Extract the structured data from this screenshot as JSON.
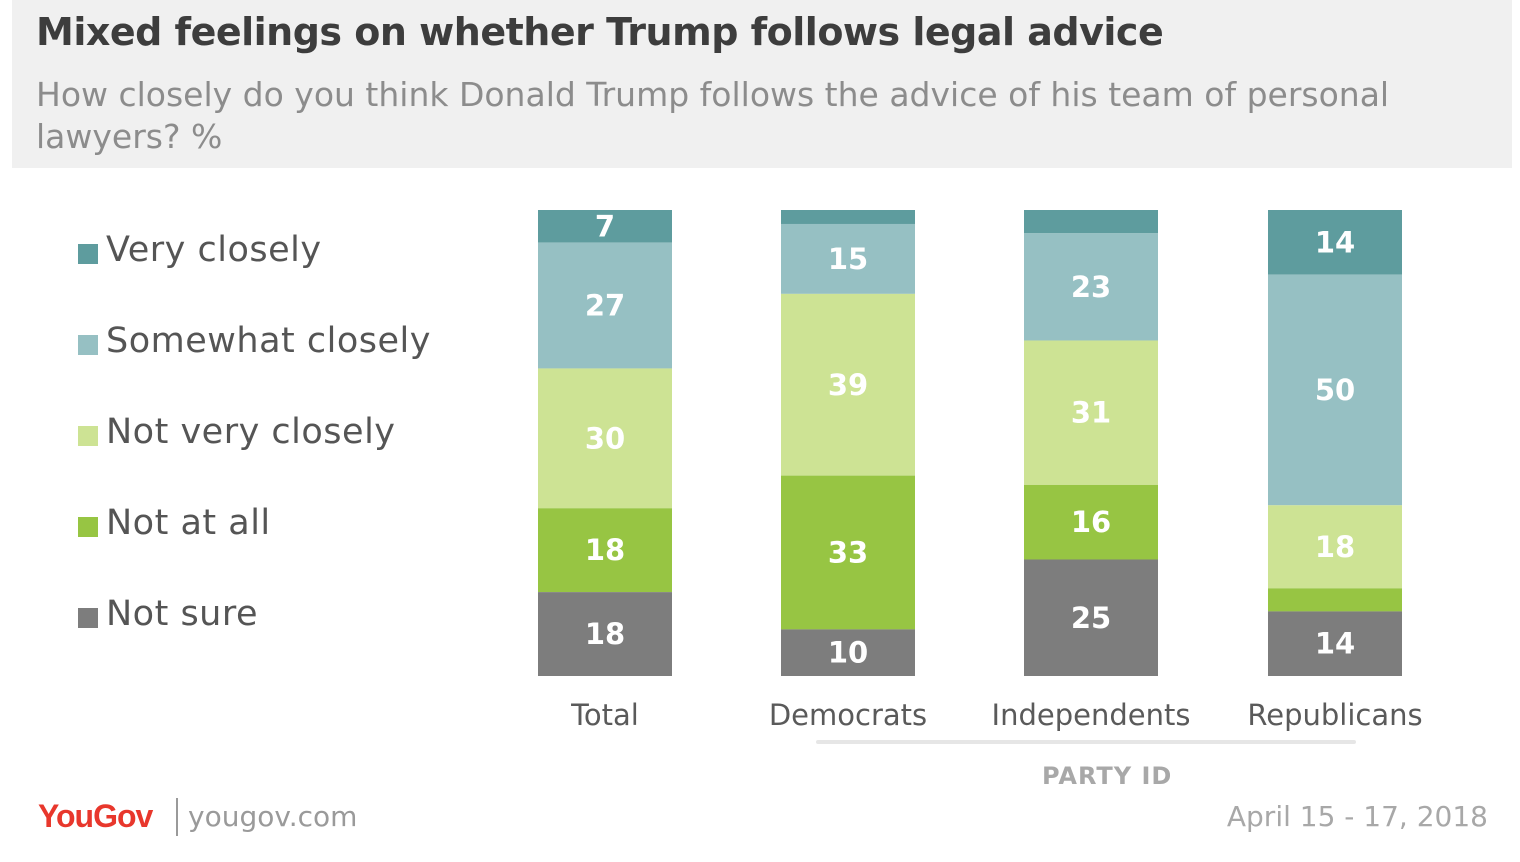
{
  "header": {
    "title": "Mixed feelings on whether Trump follows legal advice",
    "subtitle": "How closely do you think Donald Trump follows the advice of his team of personal lawyers? %"
  },
  "colors": {
    "very_closely": "#5e9c9e",
    "somewhat_closely": "#96c0c3",
    "not_very_closely": "#cde394",
    "not_at_all": "#97c543",
    "not_sure": "#7d7d7d"
  },
  "group_label": "PARTY ID",
  "footer": {
    "logo": "YouGov",
    "site": "yougov.com",
    "date": "April 15 - 17, 2018"
  },
  "chart_data": {
    "type": "bar",
    "stacked": true,
    "categories": [
      "Total",
      "Democrats",
      "Independents",
      "Republicans"
    ],
    "series": [
      {
        "name": "Very closely",
        "color": "#5e9c9e",
        "values": [
          7,
          3,
          5,
          14
        ],
        "labels": [
          "7",
          "",
          "",
          "14"
        ]
      },
      {
        "name": "Somewhat closely",
        "color": "#96c0c3",
        "values": [
          27,
          15,
          23,
          50
        ],
        "labels": [
          "27",
          "15",
          "23",
          "50"
        ]
      },
      {
        "name": "Not very closely",
        "color": "#cde394",
        "values": [
          30,
          39,
          31,
          18
        ],
        "labels": [
          "30",
          "39",
          "31",
          "18"
        ]
      },
      {
        "name": "Not at all",
        "color": "#97c543",
        "values": [
          18,
          33,
          16,
          5
        ],
        "labels": [
          "18",
          "33",
          "16",
          ""
        ]
      },
      {
        "name": "Not sure",
        "color": "#7d7d7d",
        "values": [
          18,
          10,
          25,
          14
        ],
        "labels": [
          "18",
          "10",
          "25",
          "14"
        ]
      }
    ]
  }
}
